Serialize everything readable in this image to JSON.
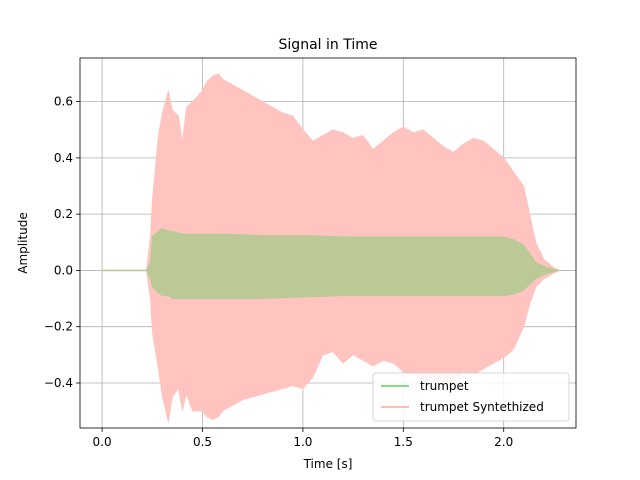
{
  "chart_data": {
    "type": "area",
    "title": "Signal in Time",
    "xlabel": "Time [s]",
    "ylabel": "Amplitude",
    "xlim": [
      -0.11,
      2.36
    ],
    "ylim": [
      -0.56,
      0.755
    ],
    "xticks": [
      0.0,
      0.5,
      1.0,
      1.5,
      2.0
    ],
    "xtick_labels": [
      "0.0",
      "0.5",
      "1.0",
      "1.5",
      "2.0"
    ],
    "yticks": [
      -0.4,
      -0.2,
      0.0,
      0.2,
      0.4,
      0.6
    ],
    "ytick_labels": [
      "−0.4",
      "−0.2",
      "0.0",
      "0.2",
      "0.4",
      "0.6"
    ],
    "grid": true,
    "legend_position": "lower-right",
    "series": [
      {
        "name": "trumpet Syntethized",
        "color": "#ffc4bf",
        "line_color": "#ffa8a0",
        "x": [
          0.0,
          0.22,
          0.24,
          0.25,
          0.28,
          0.3,
          0.33,
          0.35,
          0.38,
          0.4,
          0.42,
          0.45,
          0.5,
          0.52,
          0.55,
          0.58,
          0.6,
          0.65,
          0.7,
          0.75,
          0.8,
          0.85,
          0.9,
          0.95,
          1.0,
          1.05,
          1.1,
          1.15,
          1.2,
          1.25,
          1.3,
          1.35,
          1.4,
          1.45,
          1.5,
          1.55,
          1.6,
          1.65,
          1.7,
          1.75,
          1.8,
          1.85,
          1.9,
          1.95,
          2.0,
          2.05,
          2.1,
          2.13,
          2.16,
          2.2,
          2.25,
          2.28
        ],
        "upper": [
          0.0,
          0.0,
          0.12,
          0.25,
          0.48,
          0.56,
          0.64,
          0.57,
          0.55,
          0.46,
          0.58,
          0.6,
          0.64,
          0.67,
          0.69,
          0.7,
          0.68,
          0.66,
          0.64,
          0.62,
          0.6,
          0.58,
          0.56,
          0.55,
          0.5,
          0.46,
          0.48,
          0.5,
          0.49,
          0.47,
          0.48,
          0.43,
          0.46,
          0.49,
          0.51,
          0.49,
          0.5,
          0.47,
          0.44,
          0.42,
          0.45,
          0.47,
          0.46,
          0.43,
          0.4,
          0.35,
          0.3,
          0.2,
          0.1,
          0.04,
          0.01,
          0.0
        ],
        "lower": [
          0.0,
          0.0,
          -0.1,
          -0.22,
          -0.35,
          -0.45,
          -0.54,
          -0.45,
          -0.42,
          -0.5,
          -0.44,
          -0.5,
          -0.5,
          -0.52,
          -0.53,
          -0.52,
          -0.5,
          -0.48,
          -0.46,
          -0.45,
          -0.44,
          -0.43,
          -0.42,
          -0.41,
          -0.42,
          -0.38,
          -0.3,
          -0.29,
          -0.33,
          -0.3,
          -0.32,
          -0.34,
          -0.32,
          -0.33,
          -0.36,
          -0.37,
          -0.39,
          -0.38,
          -0.4,
          -0.4,
          -0.36,
          -0.37,
          -0.35,
          -0.33,
          -0.31,
          -0.28,
          -0.2,
          -0.12,
          -0.06,
          -0.03,
          -0.01,
          0.0
        ]
      },
      {
        "name": "trumpet",
        "color": "#bac995",
        "line_color": "#5fd35f",
        "x": [
          0.0,
          0.22,
          0.24,
          0.25,
          0.28,
          0.3,
          0.33,
          0.35,
          0.4,
          0.5,
          0.6,
          0.8,
          1.0,
          1.2,
          1.4,
          1.6,
          1.8,
          2.0,
          2.05,
          2.1,
          2.13,
          2.16,
          2.2,
          2.25,
          2.28
        ],
        "upper": [
          0.0,
          0.0,
          0.03,
          0.12,
          0.14,
          0.15,
          0.14,
          0.14,
          0.13,
          0.13,
          0.13,
          0.125,
          0.125,
          0.12,
          0.12,
          0.12,
          0.12,
          0.12,
          0.11,
          0.09,
          0.06,
          0.03,
          0.015,
          0.005,
          0.0
        ],
        "lower": [
          0.0,
          0.0,
          -0.03,
          -0.06,
          -0.08,
          -0.09,
          -0.09,
          -0.1,
          -0.1,
          -0.1,
          -0.1,
          -0.1,
          -0.095,
          -0.09,
          -0.09,
          -0.09,
          -0.09,
          -0.09,
          -0.085,
          -0.07,
          -0.05,
          -0.03,
          -0.015,
          -0.005,
          0.0
        ]
      }
    ]
  }
}
